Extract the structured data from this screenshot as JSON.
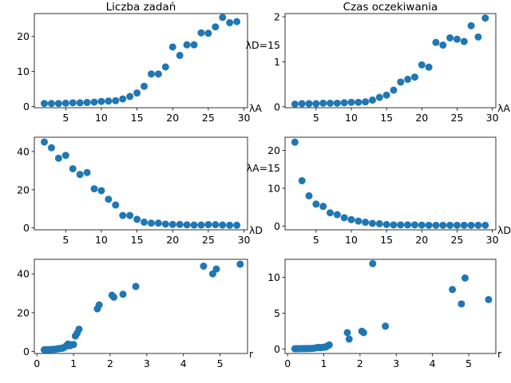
{
  "chart_data": [
    {
      "type": "scatter",
      "title": "Liczba zadań",
      "xlabel": "λA",
      "ylabel": "",
      "annotation": "",
      "xlim": [
        0.6,
        30.5
      ],
      "ylim": [
        -0.3,
        26.5
      ],
      "xticks": [
        5,
        10,
        15,
        20,
        25,
        30
      ],
      "yticks": [
        0,
        10,
        20
      ],
      "color": "#1f77b4",
      "x": [
        2,
        3,
        4,
        5,
        6,
        7,
        8,
        9,
        10,
        11,
        12,
        13,
        14,
        15,
        16,
        17,
        18,
        19,
        20,
        21,
        22,
        23,
        24,
        25,
        26,
        27,
        28,
        29
      ],
      "y": [
        0.9,
        0.9,
        0.9,
        1.0,
        1.1,
        1.1,
        1.2,
        1.3,
        1.5,
        1.6,
        1.7,
        2.2,
        2.9,
        3.9,
        5.8,
        9.3,
        9.3,
        11.3,
        17.0,
        14.6,
        17.6,
        17.6,
        21.0,
        20.9,
        22.7,
        25.4,
        23.9,
        24.2
      ]
    },
    {
      "type": "scatter",
      "title": "Czas oczekiwania",
      "xlabel": "λA",
      "ylabel": "",
      "annotation": "λD=15",
      "xlim": [
        0.6,
        30.5
      ],
      "ylim": [
        -0.02,
        2.07
      ],
      "xticks": [
        5,
        10,
        15,
        20,
        25,
        30
      ],
      "yticks": [
        0,
        1,
        2
      ],
      "color": "#1f77b4",
      "x": [
        2,
        3,
        4,
        5,
        6,
        7,
        8,
        9,
        10,
        11,
        12,
        13,
        14,
        15,
        16,
        17,
        18,
        19,
        20,
        21,
        22,
        23,
        24,
        25,
        26,
        27,
        28,
        29
      ],
      "y": [
        0.06,
        0.07,
        0.07,
        0.07,
        0.08,
        0.08,
        0.08,
        0.09,
        0.1,
        0.1,
        0.11,
        0.15,
        0.21,
        0.26,
        0.37,
        0.55,
        0.61,
        0.66,
        0.93,
        0.88,
        1.43,
        1.37,
        1.53,
        1.5,
        1.45,
        1.8,
        1.55,
        1.97
      ]
    },
    {
      "type": "scatter",
      "title": "",
      "xlabel": "λD",
      "ylabel": "",
      "annotation": "",
      "xlim": [
        0.6,
        30.5
      ],
      "ylim": [
        -1.0,
        47.5
      ],
      "xticks": [
        5,
        10,
        15,
        20,
        25,
        30
      ],
      "yticks": [
        0,
        20,
        40
      ],
      "color": "#1f77b4",
      "x": [
        2,
        3,
        4,
        5,
        6,
        7,
        8,
        9,
        10,
        11,
        12,
        13,
        14,
        15,
        16,
        17,
        18,
        19,
        20,
        21,
        22,
        23,
        24,
        25,
        26,
        27,
        28,
        29
      ],
      "y": [
        45.0,
        42.0,
        36.5,
        38.0,
        31.0,
        28.0,
        29.0,
        20.5,
        19.5,
        15.0,
        12.0,
        6.5,
        6.5,
        4.5,
        3.0,
        2.5,
        2.5,
        2.0,
        1.8,
        1.8,
        1.6,
        1.5,
        1.5,
        1.7,
        1.7,
        1.5,
        1.4,
        1.4
      ]
    },
    {
      "type": "scatter",
      "title": "",
      "xlabel": "λD",
      "ylabel": "",
      "annotation": "λA=15",
      "xlim": [
        0.6,
        30.5
      ],
      "ylim": [
        -1.0,
        23.5
      ],
      "xticks": [
        5,
        10,
        15,
        20,
        25,
        30
      ],
      "yticks": [
        0,
        10,
        20
      ],
      "color": "#1f77b4",
      "x": [
        2,
        3,
        4,
        5,
        6,
        7,
        8,
        9,
        10,
        11,
        12,
        13,
        14,
        15,
        16,
        17,
        18,
        19,
        20,
        21,
        22,
        23,
        24,
        25,
        26,
        27,
        28,
        29
      ],
      "y": [
        22.2,
        12.0,
        8.0,
        5.8,
        5.2,
        3.5,
        3.0,
        2.2,
        1.7,
        1.3,
        1.0,
        0.7,
        0.6,
        0.4,
        0.3,
        0.3,
        0.3,
        0.3,
        0.25,
        0.2,
        0.2,
        0.2,
        0.2,
        0.2,
        0.2,
        0.2,
        0.2,
        0.2
      ]
    },
    {
      "type": "scatter",
      "title": "",
      "xlabel": "r",
      "ylabel": "",
      "annotation": "",
      "xlim": [
        -0.07,
        5.75
      ],
      "ylim": [
        -1.0,
        47.5
      ],
      "xticks": [
        0,
        1,
        2,
        3,
        4,
        5
      ],
      "yticks": [
        0,
        20,
        40
      ],
      "color": "#1f77b4",
      "x": [
        0.2,
        0.25,
        0.3,
        0.35,
        0.4,
        0.45,
        0.5,
        0.55,
        0.6,
        0.65,
        0.7,
        0.75,
        0.8,
        0.85,
        0.9,
        0.95,
        1.0,
        1.05,
        1.1,
        1.15,
        1.65,
        1.7,
        2.05,
        2.1,
        2.35,
        2.7,
        4.55,
        4.8,
        4.9,
        5.55
      ],
      "y": [
        0.9,
        1.0,
        0.9,
        1.0,
        1.1,
        1.1,
        1.2,
        1.3,
        1.5,
        1.6,
        1.7,
        2.2,
        2.9,
        3.9,
        3.0,
        3.5,
        3.6,
        8.0,
        9.5,
        11.5,
        22.0,
        24.0,
        29.0,
        28.0,
        29.5,
        33.5,
        44.0,
        40.0,
        42.5,
        45.0
      ]
    },
    {
      "type": "scatter",
      "title": "",
      "xlabel": "r",
      "ylabel": "",
      "annotation": "",
      "xlim": [
        -0.07,
        5.75
      ],
      "ylim": [
        -0.6,
        12.5
      ],
      "xticks": [
        0,
        1,
        2,
        3,
        4,
        5
      ],
      "yticks": [
        0,
        5,
        10
      ],
      "color": "#1f77b4",
      "x": [
        0.2,
        0.25,
        0.3,
        0.35,
        0.4,
        0.45,
        0.5,
        0.55,
        0.6,
        0.65,
        0.7,
        0.75,
        0.8,
        0.85,
        0.9,
        0.95,
        1.0,
        1.05,
        1.1,
        1.15,
        1.65,
        1.7,
        2.05,
        2.1,
        2.35,
        2.7,
        4.55,
        4.8,
        4.9,
        5.55
      ],
      "y": [
        0.06,
        0.07,
        0.07,
        0.07,
        0.08,
        0.08,
        0.08,
        0.09,
        0.1,
        0.1,
        0.11,
        0.15,
        0.21,
        0.26,
        0.2,
        0.25,
        0.27,
        0.3,
        0.45,
        0.6,
        2.3,
        1.4,
        2.5,
        2.3,
        11.9,
        3.2,
        8.3,
        6.3,
        9.9,
        6.9
      ]
    }
  ]
}
